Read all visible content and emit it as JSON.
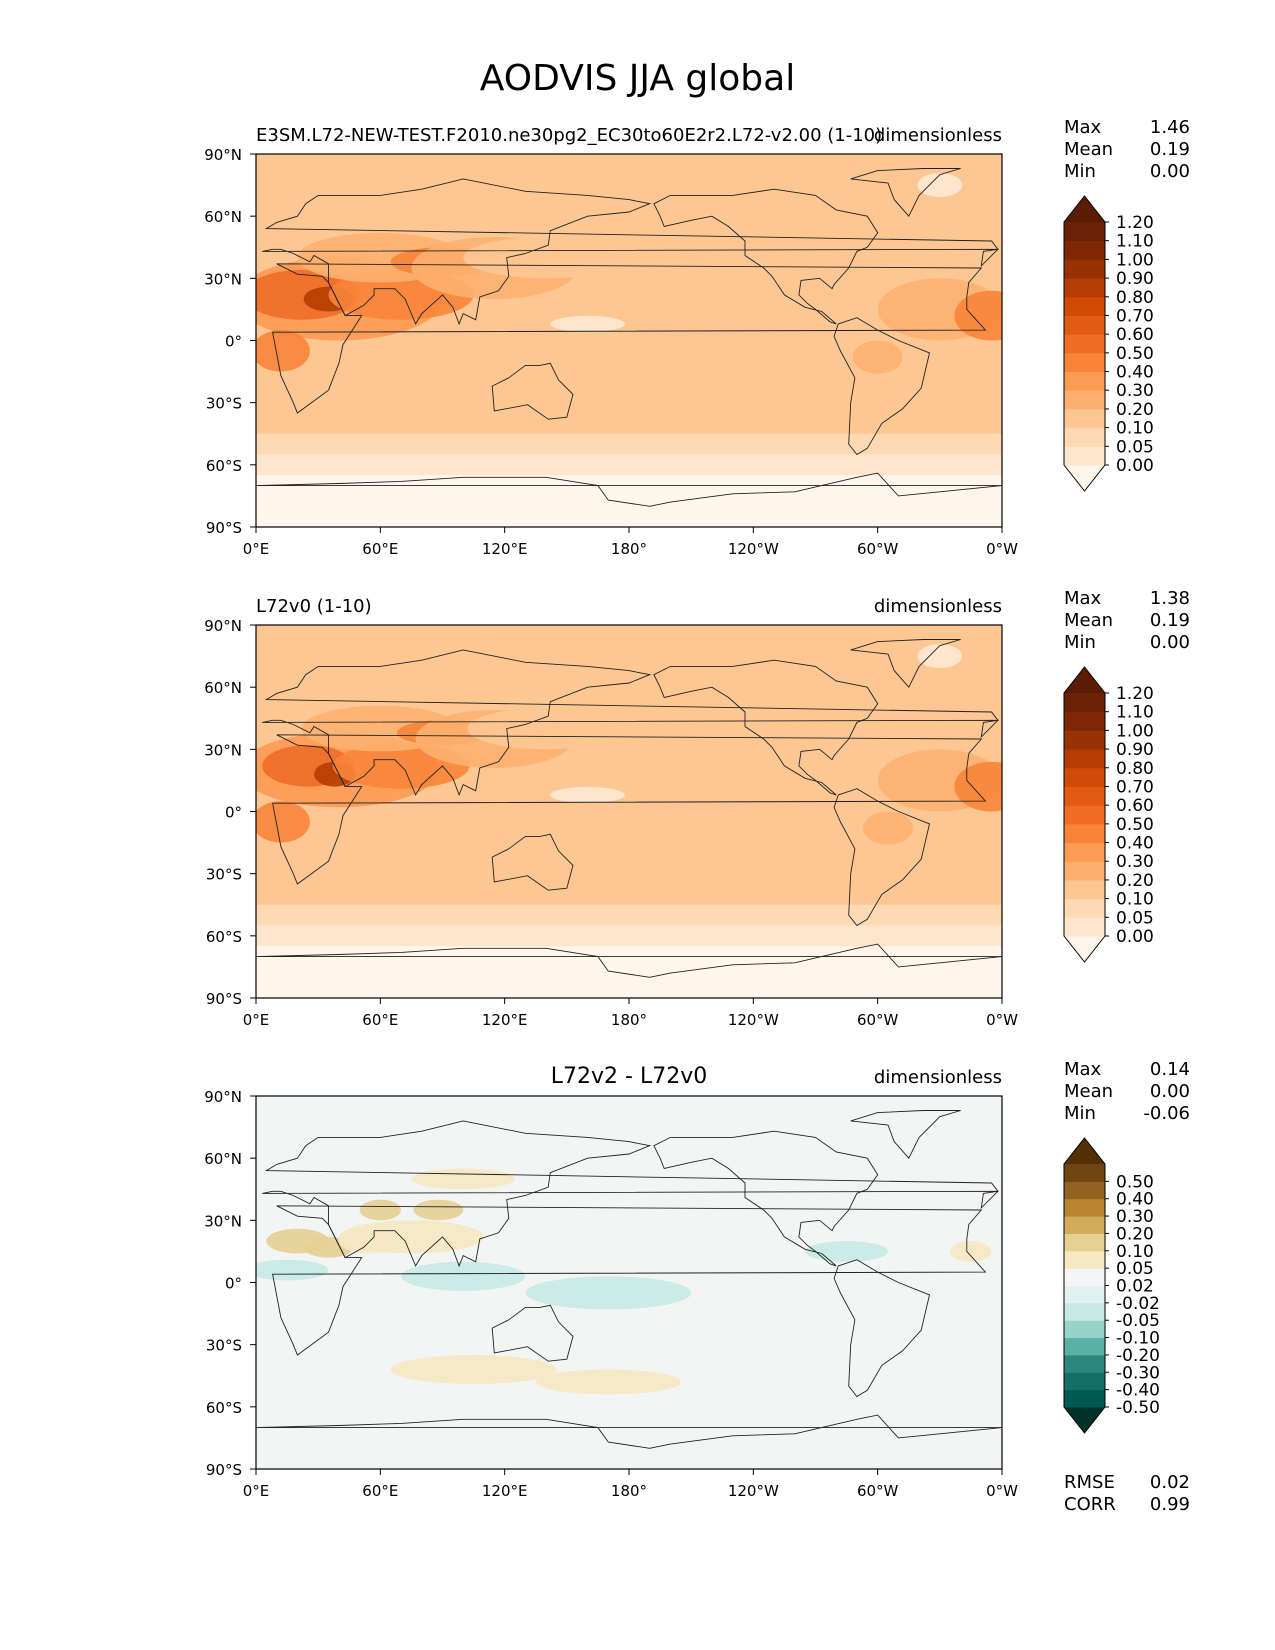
{
  "figure_title": "AODVIS JJA global",
  "chart_data": [
    {
      "type": "heatmap",
      "panel": "test",
      "title_left": "E3SM.L72-NEW-TEST.F2010.ne30pg2_EC30to60E2r2.L72-v2.00 (1-10)",
      "title_center": "",
      "title_right": "dimensionless",
      "x_ticks": [
        "0°E",
        "60°E",
        "120°E",
        "180°",
        "120°W",
        "60°W",
        "0°W"
      ],
      "y_ticks": [
        "90°N",
        "60°N",
        "30°N",
        "0°",
        "30°S",
        "60°S",
        "90°S"
      ],
      "xlim": [
        0,
        360
      ],
      "ylim": [
        -90,
        90
      ],
      "stats": [
        {
          "label": "Max",
          "value": "1.46"
        },
        {
          "label": "Mean",
          "value": "0.19"
        },
        {
          "label": "Min",
          "value": "0.00"
        }
      ],
      "colorbar_levels": [
        "0.00",
        "0.05",
        "0.10",
        "0.20",
        "0.30",
        "0.40",
        "0.50",
        "0.60",
        "0.70",
        "0.80",
        "0.90",
        "1.00",
        "1.10",
        "1.20"
      ],
      "colorbar_colors": [
        "#fff5eb",
        "#fee6ce",
        "#fdd9b4",
        "#fdc794",
        "#fdb06f",
        "#fd9a53",
        "#f8843a",
        "#f06d27",
        "#e35a12",
        "#d14a06",
        "#b53d03",
        "#973204",
        "#7f2704",
        "#6b2103",
        "#5a1c03"
      ]
    },
    {
      "type": "heatmap",
      "panel": "reference",
      "title_left": "L72v0 (1-10)",
      "title_center": "",
      "title_right": "dimensionless",
      "x_ticks": [
        "0°E",
        "60°E",
        "120°E",
        "180°",
        "120°W",
        "60°W",
        "0°W"
      ],
      "y_ticks": [
        "90°N",
        "60°N",
        "30°N",
        "0°",
        "30°S",
        "60°S",
        "90°S"
      ],
      "xlim": [
        0,
        360
      ],
      "ylim": [
        -90,
        90
      ],
      "stats": [
        {
          "label": "Max",
          "value": "1.38"
        },
        {
          "label": "Mean",
          "value": "0.19"
        },
        {
          "label": "Min",
          "value": "0.00"
        }
      ],
      "colorbar_levels": [
        "0.00",
        "0.05",
        "0.10",
        "0.20",
        "0.30",
        "0.40",
        "0.50",
        "0.60",
        "0.70",
        "0.80",
        "0.90",
        "1.00",
        "1.10",
        "1.20"
      ],
      "colorbar_colors": [
        "#fff5eb",
        "#fee6ce",
        "#fdd9b4",
        "#fdc794",
        "#fdb06f",
        "#fd9a53",
        "#f8843a",
        "#f06d27",
        "#e35a12",
        "#d14a06",
        "#b53d03",
        "#973204",
        "#7f2704",
        "#6b2103",
        "#5a1c03"
      ]
    },
    {
      "type": "heatmap",
      "panel": "difference",
      "title_left": "",
      "title_center": "L72v2 - L72v0",
      "title_right": "dimensionless",
      "x_ticks": [
        "0°E",
        "60°E",
        "120°E",
        "180°",
        "120°W",
        "60°W",
        "0°W"
      ],
      "y_ticks": [
        "90°N",
        "60°N",
        "30°N",
        "0°",
        "30°S",
        "60°S",
        "90°S"
      ],
      "xlim": [
        0,
        360
      ],
      "ylim": [
        -90,
        90
      ],
      "stats": [
        {
          "label": "Max",
          "value": "0.14"
        },
        {
          "label": "Mean",
          "value": "0.00"
        },
        {
          "label": "Min",
          "value": "-0.06"
        }
      ],
      "colorbar_levels": [
        "-0.50",
        "-0.40",
        "-0.30",
        "-0.20",
        "-0.10",
        "-0.05",
        "-0.02",
        "0.02",
        "0.05",
        "0.10",
        "0.20",
        "0.30",
        "0.40",
        "0.50"
      ],
      "colorbar_colors": [
        "#00302a",
        "#015a51",
        "#137068",
        "#2d877e",
        "#5ab0a5",
        "#97d3c9",
        "#c7eae5",
        "#e2f2ef",
        "#f5f5f5",
        "#f6e8c3",
        "#e6cf92",
        "#d3aa5c",
        "#b98431",
        "#946220",
        "#6f4512",
        "#543005"
      ],
      "extra_stats": [
        {
          "label": "RMSE",
          "value": "0.02"
        },
        {
          "label": "CORR",
          "value": "0.99"
        }
      ]
    }
  ]
}
